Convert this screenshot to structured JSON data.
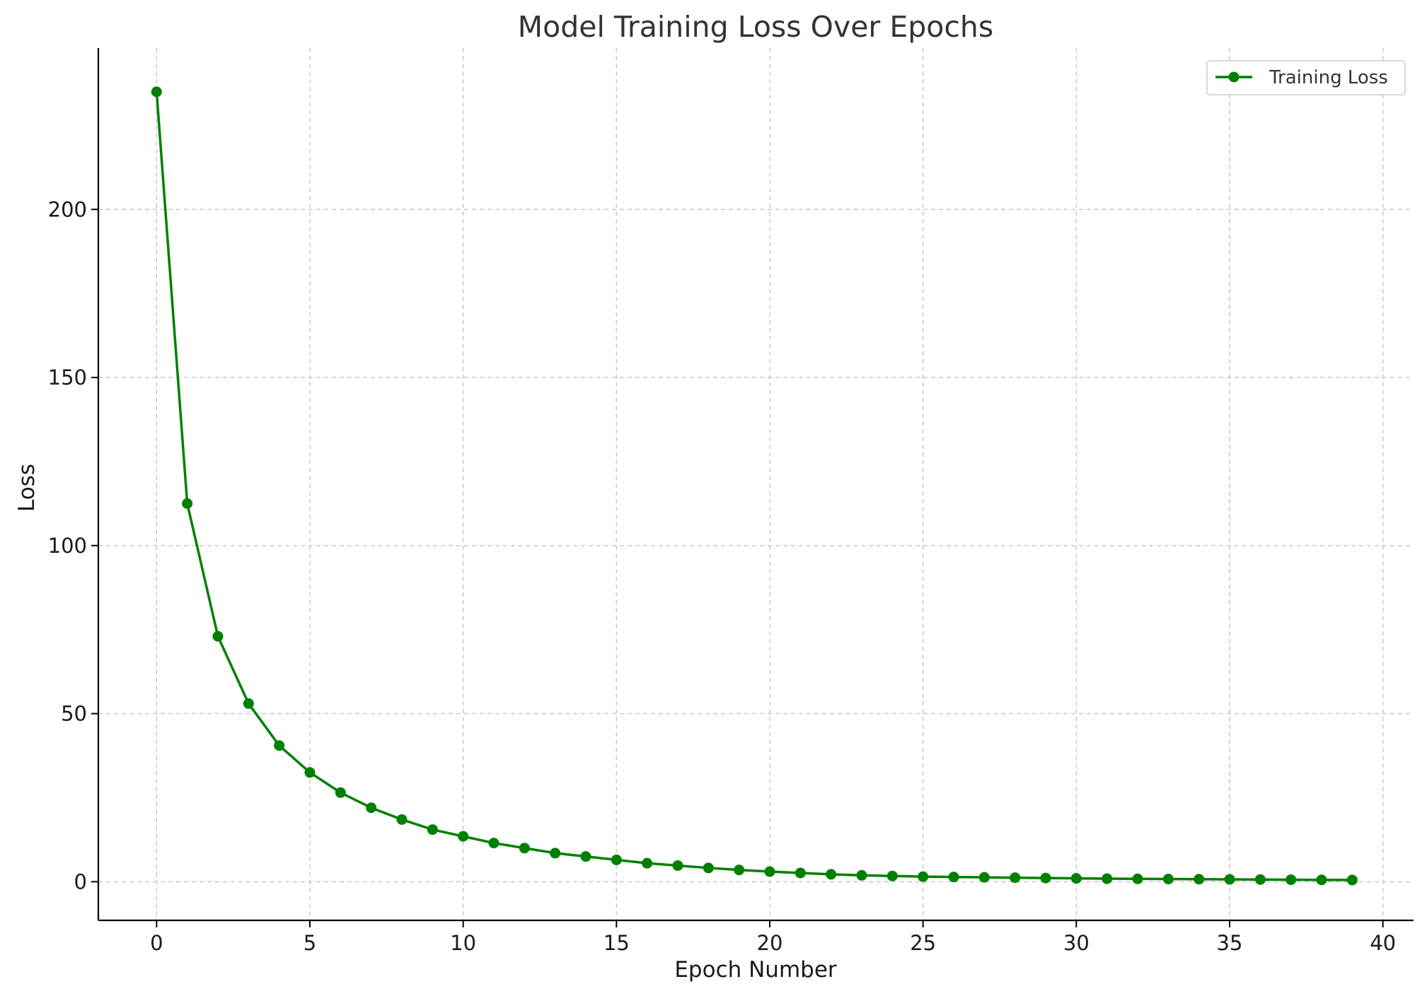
{
  "chart_data": {
    "type": "line",
    "title": "Model Training Loss Over Epochs",
    "xlabel": "Epoch Number",
    "ylabel": "Loss",
    "xlim": [
      -1.9,
      41
    ],
    "ylim": [
      -11.5,
      248
    ],
    "xticks": [
      0,
      5,
      10,
      15,
      20,
      25,
      30,
      35,
      40
    ],
    "yticks": [
      0,
      50,
      100,
      150,
      200
    ],
    "grid": true,
    "legend_position": "top-right",
    "x": [
      0,
      1,
      2,
      3,
      4,
      5,
      6,
      7,
      8,
      9,
      10,
      11,
      12,
      13,
      14,
      15,
      16,
      17,
      18,
      19,
      20,
      21,
      22,
      23,
      24,
      25,
      26,
      27,
      28,
      29,
      30,
      31,
      32,
      33,
      34,
      35,
      36,
      37,
      38,
      39
    ],
    "series": [
      {
        "name": "Training Loss",
        "color": "#008000",
        "marker": "circle",
        "values": [
          235,
          112.5,
          73,
          53,
          40.5,
          32.5,
          26.5,
          22,
          18.5,
          15.5,
          13.5,
          11.5,
          10,
          8.5,
          7.5,
          6.5,
          5.5,
          4.8,
          4.1,
          3.5,
          3.0,
          2.6,
          2.2,
          1.9,
          1.7,
          1.5,
          1.4,
          1.3,
          1.2,
          1.1,
          1.0,
          0.9,
          0.85,
          0.8,
          0.75,
          0.7,
          0.65,
          0.6,
          0.55,
          0.5
        ]
      }
    ]
  }
}
